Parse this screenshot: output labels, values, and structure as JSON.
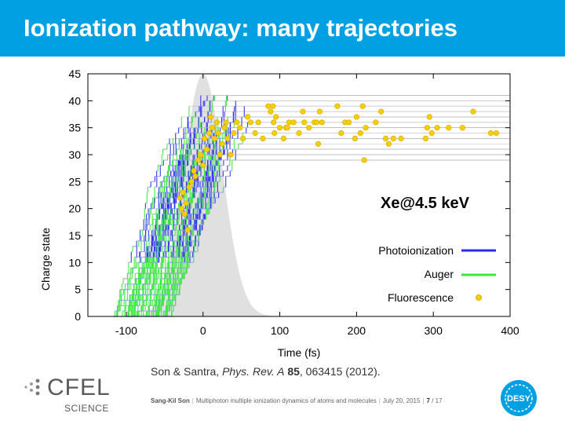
{
  "header": {
    "title": "Ionization pathway: many trajectories"
  },
  "citation": {
    "authors": "Son & Santra, ",
    "journal": "Phys. Rev. A",
    "volume": "85",
    "rest": ", 063415 (2012)."
  },
  "footer": {
    "author": "Sang-Kil Son",
    "talk": "Multiphoton multiple ionization dynamics of atoms and molecules",
    "date": "July 20, 2015",
    "page": "7",
    "total": "/ 17"
  },
  "logos": {
    "cfel": "CFEL",
    "science": "SCIENCE",
    "desy": "DESY"
  },
  "colors": {
    "header": "#00a0e3",
    "photo": "#2b2bf0",
    "auger": "#33ee33",
    "fluor": "#f5d000",
    "pulse": "#e0e0e0"
  },
  "chart_data": {
    "type": "line",
    "title": "",
    "annotation": "Xe@4.5 keV",
    "xlabel": "Time (fs)",
    "ylabel": "Charge state",
    "xlim": [
      -150,
      400
    ],
    "ylim": [
      0,
      45
    ],
    "xticks": [
      "-100",
      "0",
      "100",
      "200",
      "300",
      "400"
    ],
    "yticks": [
      "0",
      "5",
      "10",
      "15",
      "20",
      "25",
      "30",
      "35",
      "40",
      "45"
    ],
    "grid": false,
    "legend_position": "bottom-right",
    "legend": [
      {
        "label": "Photoionization",
        "kind": "line",
        "color": "#2b2bf0"
      },
      {
        "label": "Auger",
        "kind": "line",
        "color": "#33ee33"
      },
      {
        "label": "Fluorescence",
        "kind": "point",
        "color": "#f5d000"
      }
    ],
    "pulse": {
      "center_fs": 0,
      "fwhm_fs": 60,
      "peak": 45
    },
    "fluorescence_points": [
      [
        85,
        39
      ],
      [
        88,
        38
      ],
      [
        91,
        39
      ],
      [
        92,
        36
      ],
      [
        95,
        37
      ],
      [
        93,
        34
      ],
      [
        100,
        35
      ],
      [
        105,
        33
      ],
      [
        108,
        35
      ],
      [
        110,
        35
      ],
      [
        112,
        36
      ],
      [
        118,
        36
      ],
      [
        125,
        34
      ],
      [
        130,
        38
      ],
      [
        132,
        36
      ],
      [
        138,
        35
      ],
      [
        145,
        36
      ],
      [
        148,
        36
      ],
      [
        150,
        32
      ],
      [
        152,
        38
      ],
      [
        155,
        36
      ],
      [
        175,
        39
      ],
      [
        180,
        34
      ],
      [
        185,
        36
      ],
      [
        190,
        36
      ],
      [
        198,
        33
      ],
      [
        200,
        37
      ],
      [
        205,
        34
      ],
      [
        208,
        39
      ],
      [
        210,
        29
      ],
      [
        212,
        35
      ],
      [
        225,
        36
      ],
      [
        232,
        38
      ],
      [
        238,
        33
      ],
      [
        242,
        32
      ],
      [
        248,
        33
      ],
      [
        258,
        33
      ],
      [
        290,
        33
      ],
      [
        292,
        35
      ],
      [
        295,
        37
      ],
      [
        298,
        34
      ],
      [
        305,
        35
      ],
      [
        320,
        35
      ],
      [
        338,
        35
      ],
      [
        352,
        38
      ],
      [
        375,
        34
      ],
      [
        382,
        34
      ],
      [
        -30,
        22
      ],
      [
        -28,
        20
      ],
      [
        -26,
        23
      ],
      [
        -24,
        19
      ],
      [
        -22,
        21
      ],
      [
        -20,
        16
      ],
      [
        -18,
        24
      ],
      [
        -15,
        25
      ],
      [
        -12,
        27
      ],
      [
        -10,
        26
      ],
      [
        -6,
        29
      ],
      [
        -3,
        30
      ],
      [
        0,
        28
      ],
      [
        2,
        33
      ],
      [
        5,
        31
      ],
      [
        8,
        34
      ],
      [
        10,
        37
      ],
      [
        12,
        35
      ],
      [
        15,
        33
      ],
      [
        18,
        36
      ],
      [
        20,
        34
      ],
      [
        22,
        30
      ],
      [
        25,
        32
      ],
      [
        28,
        35
      ],
      [
        30,
        36
      ],
      [
        32,
        33
      ],
      [
        36,
        30
      ],
      [
        40,
        34
      ],
      [
        44,
        36
      ],
      [
        48,
        35
      ],
      [
        52,
        33
      ],
      [
        58,
        37
      ],
      [
        62,
        36
      ],
      [
        68,
        34
      ],
      [
        72,
        36
      ],
      [
        78,
        33
      ]
    ]
  }
}
